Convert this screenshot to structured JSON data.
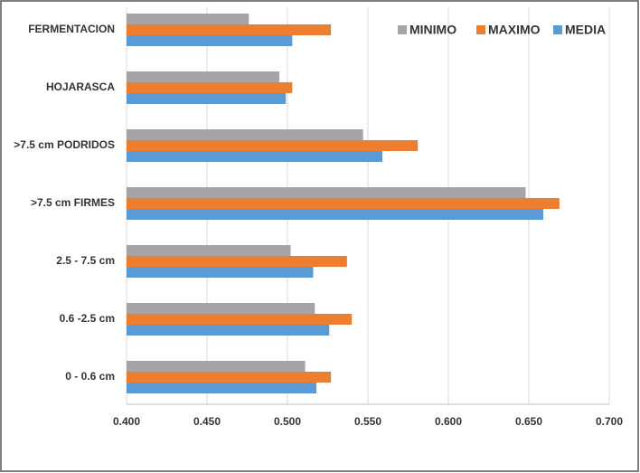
{
  "chart_data": {
    "type": "hbar",
    "categories": [
      "FERMENTACION",
      "HOJARASCA",
      ">7.5 cm PODRIDOS",
      ">7.5 cm FIRMES",
      "2.5 - 7.5 cm",
      "0.6 -2.5 cm",
      "0 - 0.6 cm"
    ],
    "series": [
      {
        "name": "MINIMO",
        "color": "#a5a5a5",
        "values": [
          0.476,
          0.495,
          0.547,
          0.648,
          0.502,
          0.517,
          0.511
        ]
      },
      {
        "name": "MAXIMO",
        "color": "#ed7d31",
        "values": [
          0.527,
          0.503,
          0.581,
          0.669,
          0.537,
          0.54,
          0.527
        ]
      },
      {
        "name": "MEDIA",
        "color": "#5b9bd5",
        "values": [
          0.503,
          0.499,
          0.559,
          0.659,
          0.516,
          0.526,
          0.518
        ]
      }
    ],
    "xlim": [
      0.4,
      0.7
    ],
    "xticks": [
      {
        "value": 0.4,
        "label": "0.400"
      },
      {
        "value": 0.45,
        "label": "0.450"
      },
      {
        "value": 0.5,
        "label": "0.500"
      },
      {
        "value": 0.55,
        "label": "0.550"
      },
      {
        "value": 0.6,
        "label": "0.600"
      },
      {
        "value": 0.65,
        "label": "0.650"
      },
      {
        "value": 0.7,
        "label": "0.700"
      }
    ],
    "grid": true,
    "legend": "top-right"
  }
}
